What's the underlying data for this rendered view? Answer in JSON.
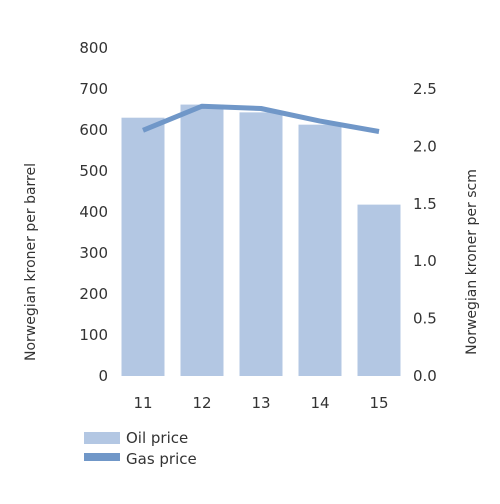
{
  "chart_data": {
    "type": "bar",
    "categories": [
      "11",
      "12",
      "13",
      "14",
      "15"
    ],
    "series": [
      {
        "name": "Oil price",
        "type": "bar",
        "axis": "left",
        "values": [
          630,
          662,
          643,
          613,
          418
        ],
        "color": "#b3c7e3"
      },
      {
        "name": "Gas price",
        "type": "line",
        "axis": "right",
        "values": [
          2.14,
          2.35,
          2.33,
          2.22,
          2.13
        ],
        "color": "#7097c8"
      }
    ],
    "y_left": {
      "label": "Norwegian kroner per barrel",
      "ylim": [
        0,
        800
      ],
      "ticks": [
        "0",
        "100",
        "200",
        "300",
        "400",
        "500",
        "600",
        "700",
        "800"
      ]
    },
    "y_right": {
      "label": "Norwegian kroner per scm",
      "ylim": [
        0,
        2.857
      ],
      "ticks": [
        "0.0",
        "0.5",
        "1.0",
        "1.5",
        "2.0",
        "2.5"
      ],
      "tick_values": [
        0,
        0.5,
        1.0,
        1.5,
        2.0,
        2.5
      ]
    },
    "grid": false,
    "legend": "bottom-left"
  }
}
